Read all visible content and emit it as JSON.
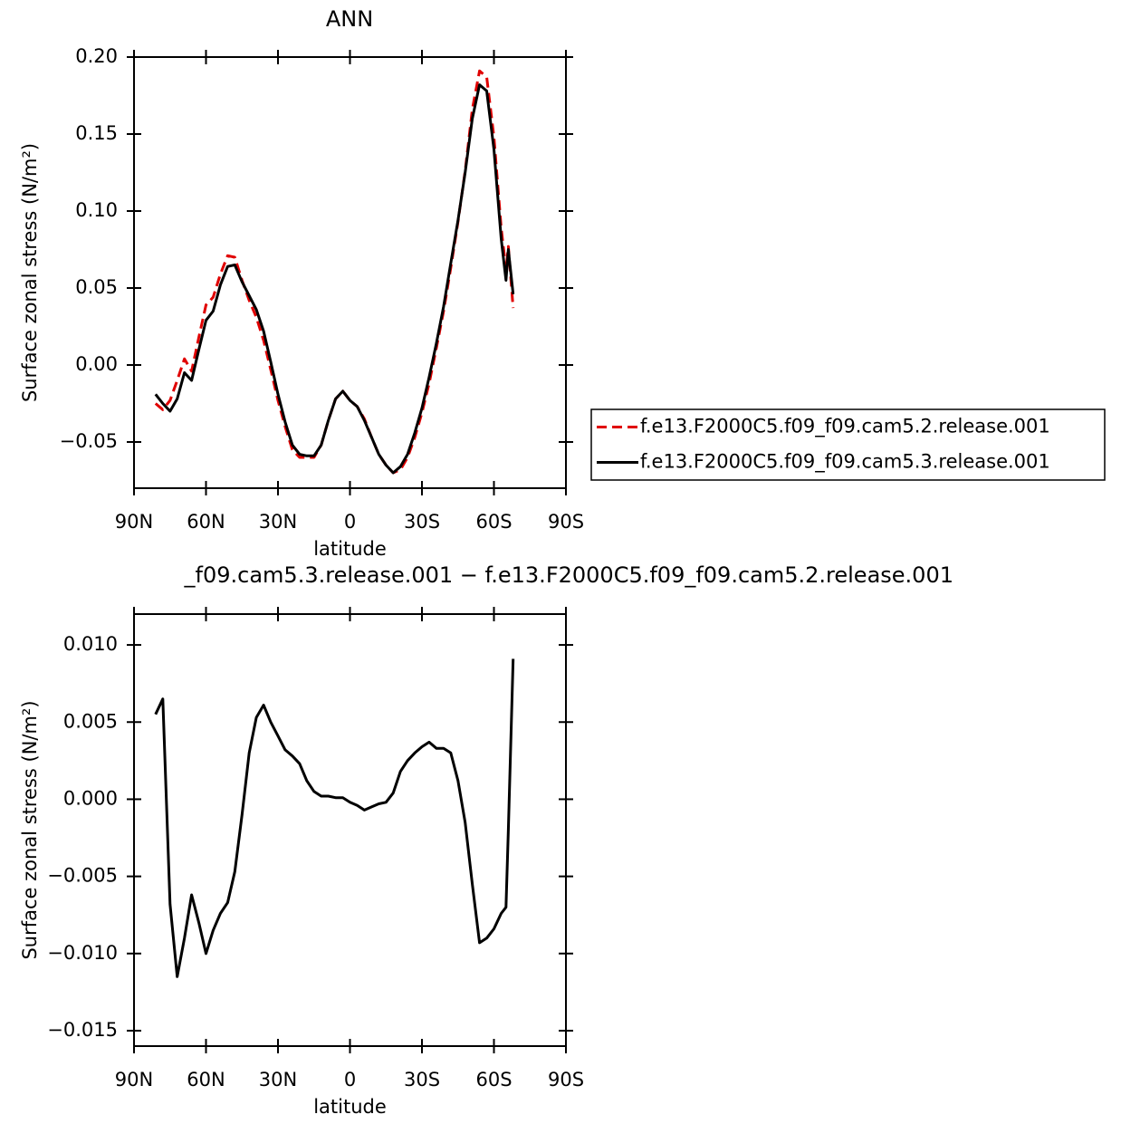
{
  "chart_data": [
    {
      "type": "line",
      "title": "ANN",
      "xlabel": "latitude",
      "ylabel": "Surface zonal stress (N/m²)",
      "x": [
        81,
        78,
        75,
        72,
        69,
        66,
        63,
        60,
        57,
        54,
        51,
        48,
        45,
        42,
        39,
        36,
        33,
        30,
        27,
        24,
        21,
        18,
        15,
        12,
        9,
        6,
        3,
        0,
        -3,
        -6,
        -9,
        -12,
        -15,
        -18,
        -21,
        -24,
        -27,
        -30,
        -33,
        -36,
        -39,
        -42,
        -45,
        -48,
        -51,
        -54,
        -57,
        -60,
        -63,
        -65,
        -66,
        -68
      ],
      "xlim": [
        90,
        -90
      ],
      "xticks": [
        {
          "value": 90,
          "label": "90N"
        },
        {
          "value": 60,
          "label": "60N"
        },
        {
          "value": 30,
          "label": "30N"
        },
        0,
        {
          "value": -30,
          "label": "30S"
        },
        {
          "value": -60,
          "label": "60S"
        },
        {
          "value": -90,
          "label": "90S"
        }
      ],
      "ylim": [
        -0.08,
        0.2
      ],
      "yticks": [
        {
          "value": 0.2,
          "label": "0.20"
        },
        {
          "value": 0.15,
          "label": "0.15"
        },
        {
          "value": 0.1,
          "label": "0.10"
        },
        {
          "value": 0.05,
          "label": "0.05"
        },
        {
          "value": 0,
          "label": "0.00"
        },
        {
          "value": -0.05,
          "label": "−0.05"
        }
      ],
      "legend": "right",
      "series": [
        {
          "name": "f.e13.F2000C5.f09_f09.cam5.2.release.001",
          "color": "#e00000",
          "line_style": "dashed",
          "values": [
            -0.025,
            -0.029,
            -0.023,
            -0.01,
            0.004,
            -0.004,
            0.018,
            0.039,
            0.044,
            0.059,
            0.071,
            0.07,
            0.055,
            0.042,
            0.031,
            0.016,
            -0.003,
            -0.023,
            -0.04,
            -0.055,
            -0.06,
            -0.06,
            -0.06,
            -0.052,
            -0.036,
            -0.022,
            -0.017,
            -0.023,
            -0.027,
            -0.035,
            -0.047,
            -0.058,
            -0.065,
            -0.07,
            -0.068,
            -0.06,
            -0.047,
            -0.031,
            -0.012,
            0.011,
            0.035,
            0.063,
            0.093,
            0.126,
            0.166,
            0.191,
            0.187,
            0.148,
            0.089,
            0.062,
            0.077,
            0.037
          ]
        },
        {
          "name": "f.e13.F2000C5.f09_f09.cam5.3.release.001",
          "color": "#000000",
          "line_style": "solid",
          "values": [
            -0.019,
            -0.025,
            -0.03,
            -0.022,
            -0.005,
            -0.01,
            0.01,
            0.029,
            0.035,
            0.052,
            0.064,
            0.065,
            0.054,
            0.045,
            0.036,
            0.022,
            0.002,
            -0.019,
            -0.037,
            -0.052,
            -0.058,
            -0.059,
            -0.059,
            -0.052,
            -0.036,
            -0.022,
            -0.017,
            -0.023,
            -0.027,
            -0.036,
            -0.047,
            -0.058,
            -0.065,
            -0.07,
            -0.066,
            -0.058,
            -0.044,
            -0.028,
            -0.008,
            0.014,
            0.038,
            0.066,
            0.094,
            0.125,
            0.16,
            0.182,
            0.178,
            0.14,
            0.082,
            0.055,
            0.075,
            0.046
          ]
        }
      ]
    },
    {
      "type": "line",
      "title": "_f09.cam5.3.release.001 − f.e13.F2000C5.f09_f09.cam5.2.release.001",
      "xlabel": "latitude",
      "ylabel": "Surface zonal stress (N/m²)",
      "x": [
        81,
        78,
        75,
        72,
        69,
        66,
        63,
        60,
        57,
        54,
        51,
        48,
        45,
        42,
        39,
        36,
        33,
        30,
        27,
        24,
        21,
        18,
        15,
        12,
        9,
        6,
        3,
        0,
        -3,
        -6,
        -9,
        -12,
        -15,
        -18,
        -21,
        -24,
        -27,
        -30,
        -33,
        -36,
        -39,
        -42,
        -45,
        -48,
        -51,
        -54,
        -57,
        -60,
        -63,
        -65,
        -66,
        -68
      ],
      "xlim": [
        90,
        -90
      ],
      "xticks": [
        {
          "value": 90,
          "label": "90N"
        },
        {
          "value": 60,
          "label": "60N"
        },
        {
          "value": 30,
          "label": "30N"
        },
        0,
        {
          "value": -30,
          "label": "30S"
        },
        {
          "value": -60,
          "label": "60S"
        },
        {
          "value": -90,
          "label": "90S"
        }
      ],
      "ylim": [
        -0.016,
        0.012
      ],
      "yticks": [
        {
          "value": 0.01,
          "label": "0.010"
        },
        {
          "value": 0.005,
          "label": "0.005"
        },
        {
          "value": 0,
          "label": "0.000"
        },
        {
          "value": -0.005,
          "label": "−0.005"
        },
        {
          "value": -0.01,
          "label": "−0.010"
        },
        {
          "value": -0.015,
          "label": "−0.015"
        }
      ],
      "color": "#000000",
      "values": [
        0.0055,
        0.0065,
        -0.0068,
        -0.0115,
        -0.009,
        -0.0062,
        -0.008,
        -0.01,
        -0.0085,
        -0.0074,
        -0.0067,
        -0.0047,
        -0.001,
        0.003,
        0.0053,
        0.0061,
        0.005,
        0.0041,
        0.0032,
        0.0028,
        0.0023,
        0.0012,
        0.0005,
        0.0002,
        0.0002,
        0.0001,
        0.0001,
        -0.0002,
        -0.0004,
        -0.0007,
        -0.0005,
        -0.0003,
        -0.0002,
        0.0004,
        0.0018,
        0.0025,
        0.003,
        0.0034,
        0.0037,
        0.0033,
        0.0033,
        0.003,
        0.0012,
        -0.0015,
        -0.0055,
        -0.0093,
        -0.009,
        -0.0084,
        -0.0074,
        -0.007,
        -0.002,
        0.0091
      ]
    }
  ]
}
